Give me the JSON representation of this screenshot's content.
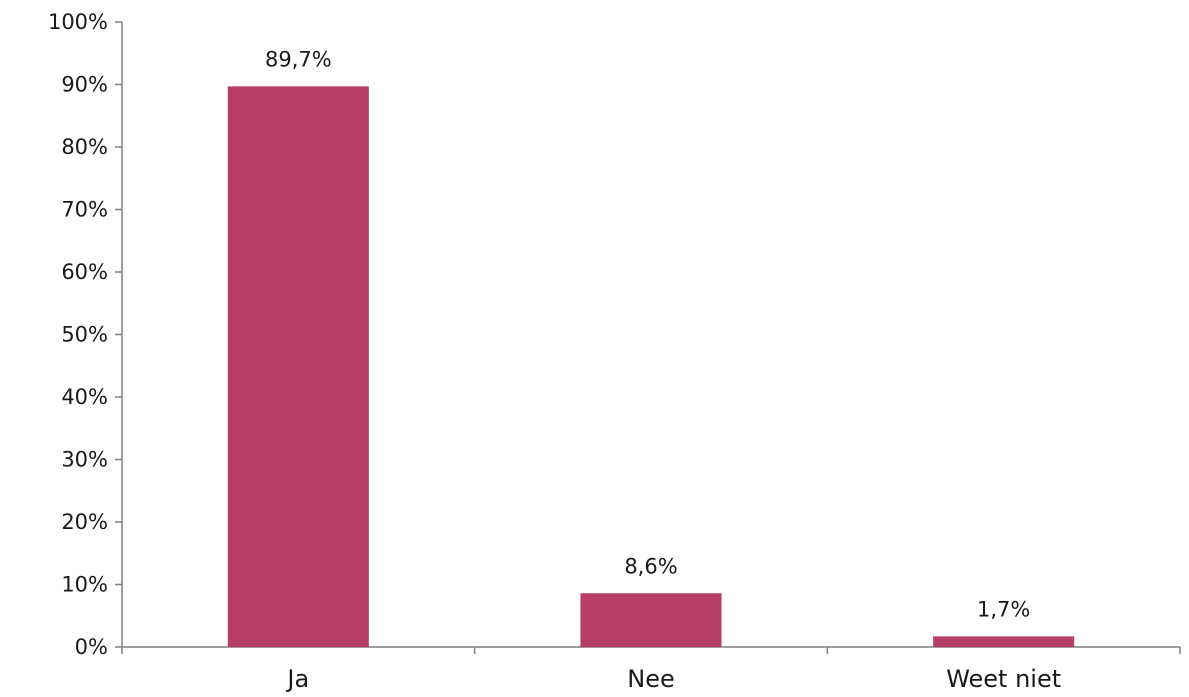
{
  "chart_data": {
    "type": "bar",
    "categories": [
      "Ja",
      "Nee",
      "Weet niet"
    ],
    "values": [
      89.7,
      8.6,
      1.7
    ],
    "data_labels": [
      "89,7%",
      "8,6%",
      "1,7%"
    ],
    "ylim": [
      0,
      100
    ],
    "y_ticks": [
      0,
      10,
      20,
      30,
      40,
      50,
      60,
      70,
      80,
      90,
      100
    ],
    "y_tick_labels": [
      "0%",
      "10%",
      "20%",
      "30%",
      "40%",
      "50%",
      "60%",
      "70%",
      "80%",
      "90%",
      "100%"
    ],
    "grid": false,
    "legend": "none",
    "bar_color": "#b83c68",
    "axis_color": "#7f7f7f"
  }
}
